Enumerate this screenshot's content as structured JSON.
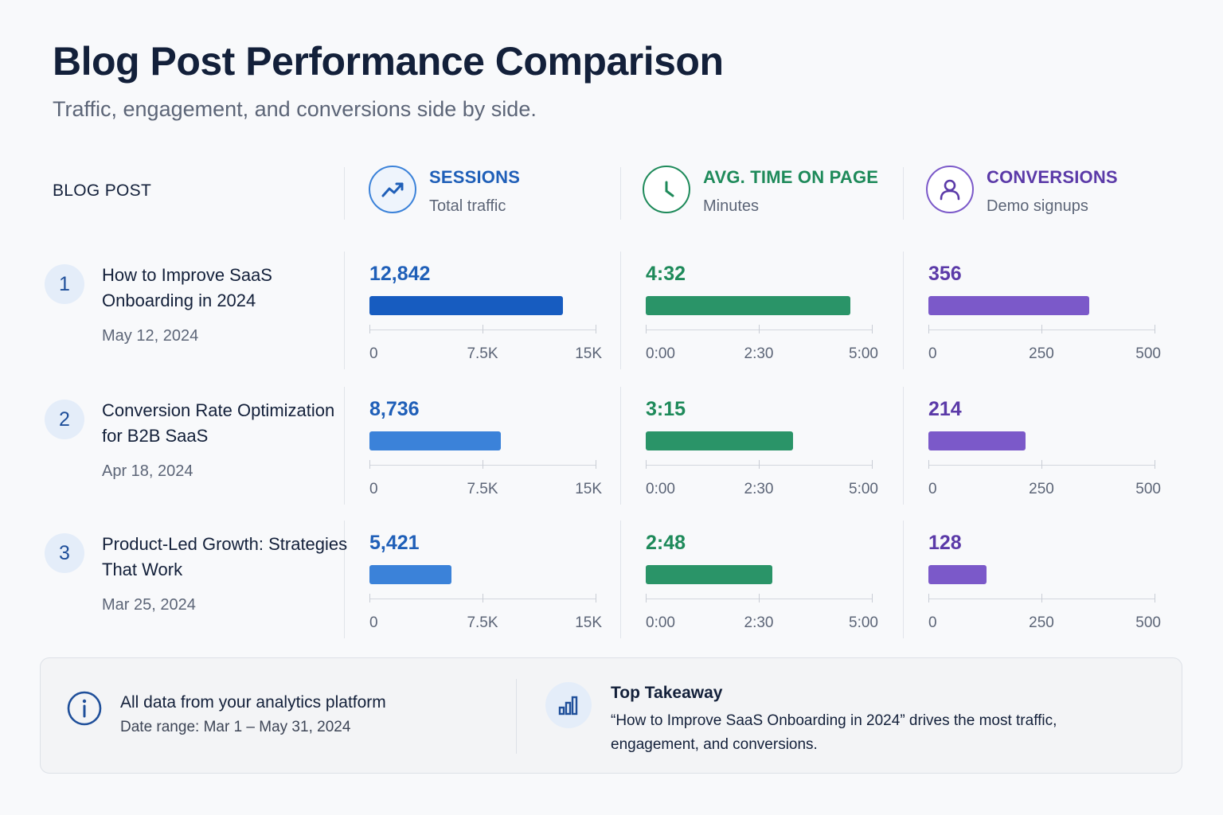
{
  "title": "Blog Post Performance Comparison",
  "subtitle": "Traffic, engagement, and conversions side by side.",
  "post_column_header": "BLOG POST",
  "colors": {
    "sessions": "#1f5fb8",
    "sessions_bar_top": "#175cc0",
    "sessions_bar": "#3b82d9",
    "time": "#1e8a5a",
    "time_bar": "#2a9468",
    "conversions": "#5b3aa8",
    "conversions_bar": "#7b59c9"
  },
  "metrics": [
    {
      "key": "sessions",
      "label": "SESSIONS",
      "sublabel": "Total traffic",
      "icon": "trending-up-icon"
    },
    {
      "key": "time",
      "label": "AVG. TIME ON PAGE",
      "sublabel": "Minutes",
      "icon": "clock-icon"
    },
    {
      "key": "conversions",
      "label": "CONVERSIONS",
      "sublabel": "Demo signups",
      "icon": "user-icon"
    }
  ],
  "posts": [
    {
      "rank": "1",
      "title": "How to Improve SaaS Onboarding in 2024",
      "date": "May 12, 2024",
      "sessions": {
        "label": "12,842"
      },
      "time": {
        "label": "4:32"
      },
      "conversions": {
        "label": "356"
      }
    },
    {
      "rank": "2",
      "title": "Conversion Rate Optimization for B2B SaaS",
      "date": "Apr 18, 2024",
      "sessions": {
        "label": "8,736"
      },
      "time": {
        "label": "3:15"
      },
      "conversions": {
        "label": "214"
      }
    },
    {
      "rank": "3",
      "title": "Product-Led Growth: Strategies That Work",
      "date": "Mar 25, 2024",
      "sessions": {
        "label": "5,421"
      },
      "time": {
        "label": "2:48"
      },
      "conversions": {
        "label": "128"
      }
    }
  ],
  "chart_data": [
    {
      "type": "bar",
      "title": "SESSIONS",
      "subtitle": "Total traffic",
      "categories": [
        "How to Improve SaaS Onboarding in 2024",
        "Conversion Rate Optimization for B2B SaaS",
        "Product-Led Growth: Strategies That Work"
      ],
      "values": [
        12842,
        8736,
        5421
      ],
      "xlim": [
        0,
        15000
      ],
      "tick_labels": [
        "0",
        "7.5K",
        "15K"
      ]
    },
    {
      "type": "bar",
      "title": "AVG. TIME ON PAGE",
      "subtitle": "Minutes",
      "categories": [
        "How to Improve SaaS Onboarding in 2024",
        "Conversion Rate Optimization for B2B SaaS",
        "Product-Led Growth: Strategies That Work"
      ],
      "values": [
        "4:32",
        "3:15",
        "2:48"
      ],
      "xlim": [
        "0:00",
        "5:00"
      ],
      "tick_labels": [
        "0:00",
        "2:30",
        "5:00"
      ]
    },
    {
      "type": "bar",
      "title": "CONVERSIONS",
      "subtitle": "Demo signups",
      "categories": [
        "How to Improve SaaS Onboarding in 2024",
        "Conversion Rate Optimization for B2B SaaS",
        "Product-Led Growth: Strategies That Work"
      ],
      "values": [
        356,
        214,
        128
      ],
      "xlim": [
        0,
        500
      ],
      "tick_labels": [
        "0",
        "250",
        "500"
      ]
    }
  ],
  "footer": {
    "source_line": "All data from your analytics platform",
    "date_range": "Date range: Mar 1 – May 31, 2024",
    "takeaway_title": "Top Takeaway",
    "takeaway_body": "“How to Improve SaaS Onboarding in 2024” drives the most traffic, engagement, and conversions."
  }
}
